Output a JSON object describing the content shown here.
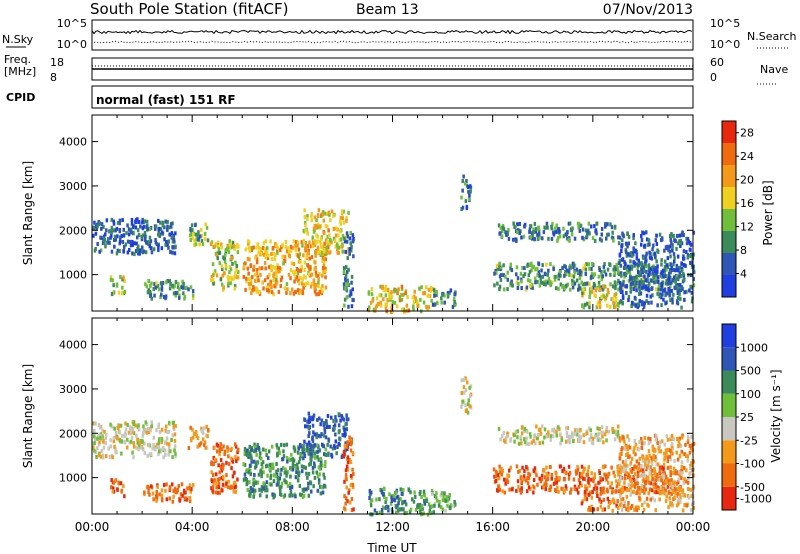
{
  "header": {
    "station": "South Pole Station (fitACF)",
    "beam": "Beam 13",
    "date": "07/Nov/2013"
  },
  "info_panels": {
    "nsky_label": "N.Sky",
    "nsky_ticks": [
      "10^5",
      "10^0"
    ],
    "nsearch_label": "N.Search",
    "nsearch_ticks": [
      "10^5",
      "10^0"
    ],
    "freq_label": "Freq.",
    "freq_unit": "[MHz]",
    "freq_ticks": [
      "18",
      "8"
    ],
    "nave_label": "Nave",
    "nave_ticks": [
      "60",
      "0"
    ],
    "cpid_label": "CPID",
    "cpid_value": "normal (fast) 151 RF"
  },
  "colors": {
    "power": [
      "#1f3fe0",
      "#2f55b6",
      "#3a8a5a",
      "#6fbf3b",
      "#f0d020",
      "#f49a1a",
      "#f06a10",
      "#e8280e"
    ],
    "velocity": [
      "#e8280e",
      "#f06a10",
      "#f49a1a",
      "#c8c8c0",
      "#6fbf3b",
      "#3a8a5a",
      "#2f55b6",
      "#1f3fe0"
    ],
    "frame": "#000000"
  },
  "chart_data": [
    {
      "type": "heatmap",
      "name": "power",
      "xlabel": "",
      "ylabel": "Slant Range [km]",
      "xlim_hours": [
        0,
        24
      ],
      "ylim_km": [
        180,
        4600
      ],
      "yticks": [
        "1000",
        "2000",
        "3000",
        "4000"
      ],
      "colorbar": {
        "label": "Power [dB]",
        "ticks": [
          "4",
          "8",
          "12",
          "16",
          "20",
          "24",
          "28"
        ],
        "range": [
          0,
          30
        ]
      },
      "echo_regions": [
        {
          "t0": 0.0,
          "t1": 3.3,
          "r0": 1500,
          "r1": 2300,
          "level": 0.15
        },
        {
          "t0": 0.7,
          "t1": 1.3,
          "r0": 600,
          "r1": 1000,
          "level": 0.45
        },
        {
          "t0": 2.0,
          "t1": 4.0,
          "r0": 500,
          "r1": 900,
          "level": 0.3
        },
        {
          "t0": 3.8,
          "t1": 4.6,
          "r0": 1700,
          "r1": 2200,
          "level": 0.4
        },
        {
          "t0": 4.7,
          "t1": 5.8,
          "r0": 700,
          "r1": 1800,
          "level": 0.5
        },
        {
          "t0": 6.0,
          "t1": 9.3,
          "r0": 600,
          "r1": 1800,
          "level": 0.7
        },
        {
          "t0": 8.4,
          "t1": 10.2,
          "r0": 1500,
          "r1": 2500,
          "level": 0.6
        },
        {
          "t0": 10.0,
          "t1": 10.4,
          "r0": 300,
          "r1": 2000,
          "level": 0.2
        },
        {
          "t0": 11.0,
          "t1": 13.6,
          "r0": 200,
          "r1": 800,
          "level": 0.6
        },
        {
          "t0": 13.5,
          "t1": 14.5,
          "r0": 300,
          "r1": 700,
          "level": 0.25
        },
        {
          "t0": 14.7,
          "t1": 15.1,
          "r0": 2500,
          "r1": 3300,
          "level": 0.2
        },
        {
          "t0": 16.0,
          "t1": 23.5,
          "r0": 700,
          "r1": 1300,
          "level": 0.3
        },
        {
          "t0": 16.2,
          "t1": 21.0,
          "r0": 1800,
          "r1": 2200,
          "level": 0.25
        },
        {
          "t0": 19.5,
          "t1": 21.0,
          "r0": 300,
          "r1": 800,
          "level": 0.5
        },
        {
          "t0": 21.0,
          "t1": 24.0,
          "r0": 300,
          "r1": 2000,
          "level": 0.15
        }
      ]
    },
    {
      "type": "heatmap",
      "name": "velocity",
      "xlabel": "Time UT",
      "ylabel": "Slant Range [km]",
      "xlim_hours": [
        0,
        24
      ],
      "ylim_km": [
        180,
        4600
      ],
      "xticks": [
        "00:00",
        "04:00",
        "08:00",
        "12:00",
        "16:00",
        "20:00",
        "00:00"
      ],
      "yticks": [
        "1000",
        "2000",
        "3000",
        "4000"
      ],
      "colorbar": {
        "label": "Velocity [m s⁻¹]",
        "ticks": [
          "1000",
          "500",
          "100",
          "25",
          "-25",
          "-100",
          "-500",
          "-1000"
        ]
      },
      "echo_regions": [
        {
          "t0": 0.0,
          "t1": 3.3,
          "r0": 1500,
          "r1": 2300,
          "level": 3
        },
        {
          "t0": 0.7,
          "t1": 1.3,
          "r0": 600,
          "r1": 1000,
          "level": 1
        },
        {
          "t0": 2.0,
          "t1": 4.0,
          "r0": 500,
          "r1": 900,
          "level": 1
        },
        {
          "t0": 3.8,
          "t1": 4.6,
          "r0": 1700,
          "r1": 2200,
          "level": 2
        },
        {
          "t0": 4.7,
          "t1": 5.8,
          "r0": 700,
          "r1": 1800,
          "level": 1
        },
        {
          "t0": 6.0,
          "t1": 9.3,
          "r0": 600,
          "r1": 1800,
          "level": 5
        },
        {
          "t0": 8.4,
          "t1": 10.2,
          "r0": 1500,
          "r1": 2500,
          "level": 6
        },
        {
          "t0": 10.0,
          "t1": 10.4,
          "r0": 300,
          "r1": 2000,
          "level": 1
        },
        {
          "t0": 11.0,
          "t1": 13.6,
          "r0": 200,
          "r1": 800,
          "level": 5
        },
        {
          "t0": 13.5,
          "t1": 14.5,
          "r0": 300,
          "r1": 700,
          "level": 4
        },
        {
          "t0": 14.7,
          "t1": 15.1,
          "r0": 2500,
          "r1": 3300,
          "level": 3
        },
        {
          "t0": 16.0,
          "t1": 23.5,
          "r0": 700,
          "r1": 1300,
          "level": 1
        },
        {
          "t0": 16.2,
          "t1": 21.0,
          "r0": 1800,
          "r1": 2200,
          "level": 3
        },
        {
          "t0": 19.5,
          "t1": 21.0,
          "r0": 300,
          "r1": 800,
          "level": 1
        },
        {
          "t0": 21.0,
          "t1": 24.0,
          "r0": 300,
          "r1": 2000,
          "level": 2
        }
      ]
    }
  ]
}
